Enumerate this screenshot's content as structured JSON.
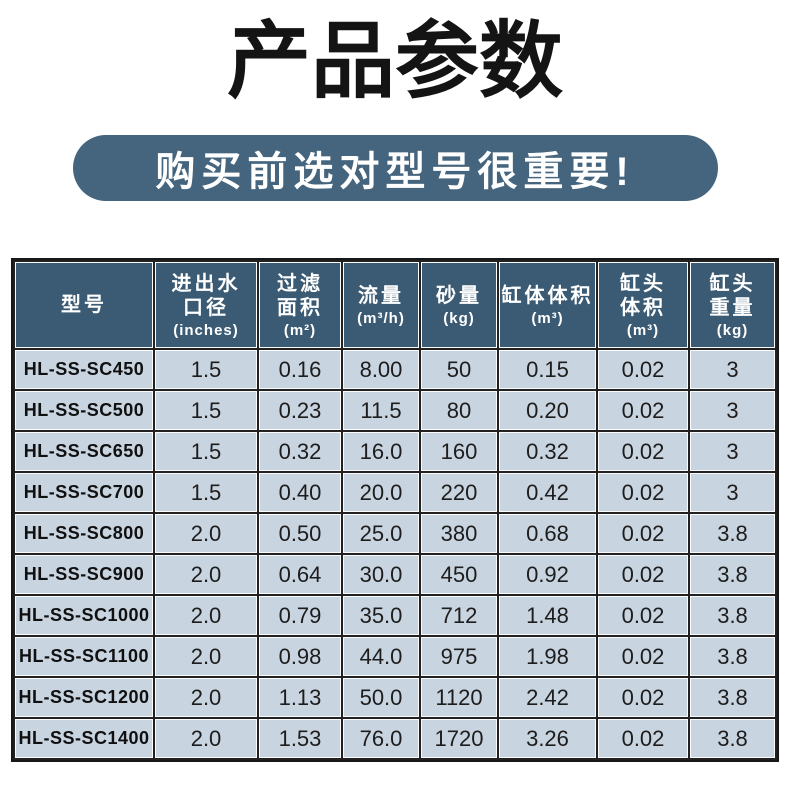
{
  "header": {
    "title": "产品参数",
    "subtitle": "购买前选对型号很重要!"
  },
  "colors": {
    "pill_bg": "#45647d",
    "header_bg": "#3b5b74",
    "cell_bg": "#c8d4e0",
    "grid_color": "#212121"
  },
  "table": {
    "columns": [
      {
        "title": "型号",
        "title2": "",
        "unit": ""
      },
      {
        "title": "进出水",
        "title2": "口径",
        "unit": "(inches)"
      },
      {
        "title": "过滤",
        "title2": "面积",
        "unit": "(m²)"
      },
      {
        "title": "流量",
        "title2": "",
        "unit": "(m³/h)"
      },
      {
        "title": "砂量",
        "title2": "",
        "unit": "(kg)"
      },
      {
        "title": "缸体体积",
        "title2": "",
        "unit": "(m³)"
      },
      {
        "title": "缸头",
        "title2": "体积",
        "unit": "(m³)"
      },
      {
        "title": "缸头",
        "title2": "重量",
        "unit": "(kg)"
      }
    ],
    "rows": [
      [
        "HL-SS-SC450",
        "1.5",
        "0.16",
        "8.00",
        "50",
        "0.15",
        "0.02",
        "3"
      ],
      [
        "HL-SS-SC500",
        "1.5",
        "0.23",
        "11.5",
        "80",
        "0.20",
        "0.02",
        "3"
      ],
      [
        "HL-SS-SC650",
        "1.5",
        "0.32",
        "16.0",
        "160",
        "0.32",
        "0.02",
        "3"
      ],
      [
        "HL-SS-SC700",
        "1.5",
        "0.40",
        "20.0",
        "220",
        "0.42",
        "0.02",
        "3"
      ],
      [
        "HL-SS-SC800",
        "2.0",
        "0.50",
        "25.0",
        "380",
        "0.68",
        "0.02",
        "3.8"
      ],
      [
        "HL-SS-SC900",
        "2.0",
        "0.64",
        "30.0",
        "450",
        "0.92",
        "0.02",
        "3.8"
      ],
      [
        "HL-SS-SC1000",
        "2.0",
        "0.79",
        "35.0",
        "712",
        "1.48",
        "0.02",
        "3.8"
      ],
      [
        "HL-SS-SC1100",
        "2.0",
        "0.98",
        "44.0",
        "975",
        "1.98",
        "0.02",
        "3.8"
      ],
      [
        "HL-SS-SC1200",
        "2.0",
        "1.13",
        "50.0",
        "1120",
        "2.42",
        "0.02",
        "3.8"
      ],
      [
        "HL-SS-SC1400",
        "2.0",
        "1.53",
        "76.0",
        "1720",
        "3.26",
        "0.02",
        "3.8"
      ]
    ]
  }
}
